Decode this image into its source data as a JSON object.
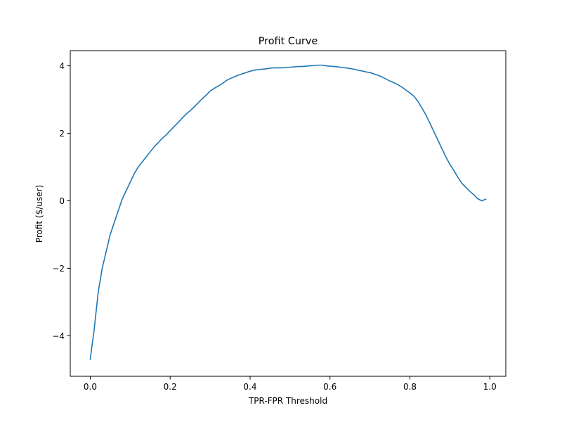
{
  "chart_data": {
    "type": "line",
    "title": "Profit Curve",
    "xlabel": "TPR-FPR Threshold",
    "ylabel": "Profit ($/user)",
    "xlim": [
      -0.05,
      1.04
    ],
    "ylim": [
      -5.2,
      4.45
    ],
    "xticks": [
      {
        "value": 0.0,
        "label": "0.0"
      },
      {
        "value": 0.2,
        "label": "0.2"
      },
      {
        "value": 0.4,
        "label": "0.4"
      },
      {
        "value": 0.6,
        "label": "0.6"
      },
      {
        "value": 0.8,
        "label": "0.8"
      },
      {
        "value": 1.0,
        "label": "1.0"
      }
    ],
    "yticks": [
      {
        "value": -4,
        "label": "−4"
      },
      {
        "value": -2,
        "label": "−2"
      },
      {
        "value": 0,
        "label": "0"
      },
      {
        "value": 2,
        "label": "2"
      },
      {
        "value": 4,
        "label": "4"
      }
    ],
    "grid": false,
    "series": [
      {
        "color": "#1f77b4",
        "x": [
          0.0,
          0.01,
          0.02,
          0.03,
          0.04,
          0.05,
          0.06,
          0.07,
          0.08,
          0.09,
          0.1,
          0.11,
          0.12,
          0.13,
          0.14,
          0.15,
          0.16,
          0.17,
          0.18,
          0.19,
          0.2,
          0.21,
          0.22,
          0.23,
          0.24,
          0.25,
          0.26,
          0.27,
          0.28,
          0.29,
          0.3,
          0.31,
          0.32,
          0.33,
          0.34,
          0.35,
          0.36,
          0.37,
          0.38,
          0.39,
          0.4,
          0.41,
          0.42,
          0.43,
          0.44,
          0.45,
          0.46,
          0.47,
          0.48,
          0.49,
          0.5,
          0.51,
          0.52,
          0.53,
          0.54,
          0.55,
          0.56,
          0.57,
          0.58,
          0.59,
          0.6,
          0.61,
          0.62,
          0.63,
          0.64,
          0.65,
          0.66,
          0.67,
          0.68,
          0.69,
          0.7,
          0.71,
          0.72,
          0.73,
          0.74,
          0.75,
          0.76,
          0.77,
          0.78,
          0.79,
          0.8,
          0.81,
          0.82,
          0.83,
          0.84,
          0.85,
          0.86,
          0.87,
          0.88,
          0.89,
          0.9,
          0.91,
          0.92,
          0.93,
          0.94,
          0.95,
          0.96,
          0.97,
          0.98,
          0.99
        ],
        "y": [
          -4.7,
          -3.8,
          -2.7,
          -2.0,
          -1.5,
          -1.0,
          -0.65,
          -0.3,
          0.05,
          0.3,
          0.55,
          0.8,
          1.0,
          1.15,
          1.3,
          1.45,
          1.6,
          1.72,
          1.85,
          1.95,
          2.08,
          2.2,
          2.32,
          2.45,
          2.57,
          2.67,
          2.78,
          2.9,
          3.02,
          3.13,
          3.25,
          3.33,
          3.4,
          3.47,
          3.56,
          3.62,
          3.67,
          3.72,
          3.76,
          3.8,
          3.84,
          3.87,
          3.89,
          3.9,
          3.91,
          3.93,
          3.94,
          3.94,
          3.94,
          3.95,
          3.96,
          3.97,
          3.98,
          3.98,
          3.99,
          4.0,
          4.01,
          4.02,
          4.02,
          4.0,
          3.99,
          3.98,
          3.97,
          3.95,
          3.94,
          3.92,
          3.9,
          3.87,
          3.85,
          3.82,
          3.8,
          3.76,
          3.72,
          3.67,
          3.61,
          3.55,
          3.5,
          3.44,
          3.37,
          3.28,
          3.2,
          3.1,
          2.95,
          2.75,
          2.55,
          2.3,
          2.05,
          1.8,
          1.55,
          1.3,
          1.08,
          0.9,
          0.7,
          0.52,
          0.4,
          0.28,
          0.18,
          0.06,
          0.0,
          0.05
        ]
      }
    ]
  }
}
